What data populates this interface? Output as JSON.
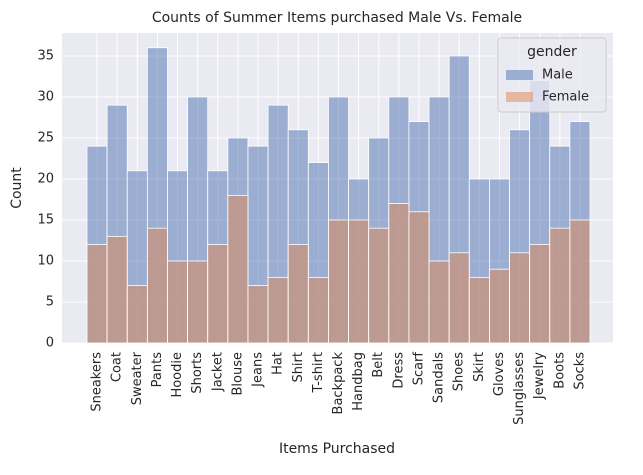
{
  "chart_data": {
    "type": "histogram-overlay",
    "title": "Counts of Summer Items purchased Male Vs. Female",
    "x_label": "Items Purchased",
    "y_label": "Count",
    "categories": [
      "Sneakers",
      "Coat",
      "Sweater",
      "Pants",
      "Hoodie",
      "Shorts",
      "Jacket",
      "Blouse",
      "Jeans",
      "Hat",
      "Shirt",
      "T-shirt",
      "Backpack",
      "Handbag",
      "Belt",
      "Dress",
      "Scarf",
      "Sandals",
      "Shoes",
      "Skirt",
      "Gloves",
      "Sunglasses",
      "Jewelry",
      "Boots",
      "Socks"
    ],
    "series": [
      {
        "name": "Male",
        "color": "#4c72b0",
        "alpha": 0.5,
        "values": [
          24,
          29,
          21,
          36,
          21,
          30,
          21,
          25,
          24,
          29,
          26,
          22,
          30,
          20,
          25,
          30,
          27,
          30,
          35,
          20,
          20,
          26,
          32,
          24,
          27
        ]
      },
      {
        "name": "Female",
        "color": "#dd8452",
        "alpha": 0.5,
        "values": [
          12,
          13,
          7,
          14,
          10,
          10,
          12,
          18,
          7,
          8,
          12,
          8,
          15,
          15,
          14,
          17,
          16,
          10,
          11,
          8,
          9,
          11,
          12,
          14,
          15
        ]
      }
    ],
    "legend_title": "gender",
    "legend": "upper right",
    "ylim": [
      0,
      37.8
    ],
    "yticks": [
      0,
      5,
      10,
      15,
      20,
      25,
      30,
      35
    ],
    "grid": true
  }
}
